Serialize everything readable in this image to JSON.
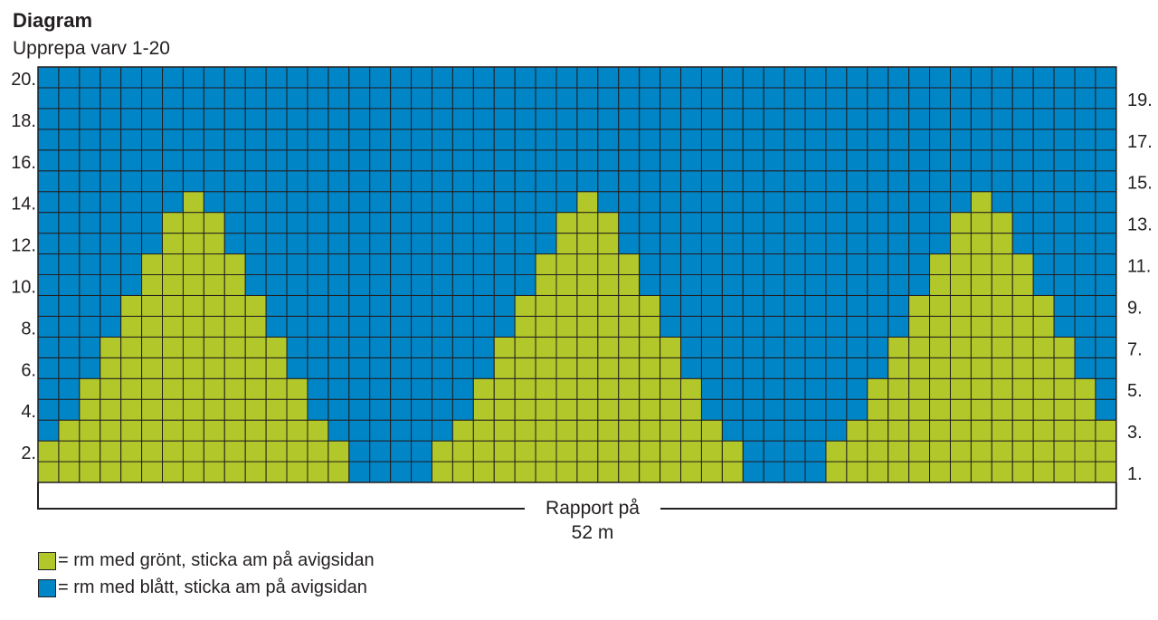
{
  "title": "Diagram",
  "subtitle": "Upprepa varv 1-20",
  "colors": {
    "green": "#b2c82a",
    "blue": "#0085c7",
    "grid_line": "#231f20"
  },
  "grid": {
    "columns": 52,
    "rows": 20,
    "green_row_widths": [
      15,
      15,
      13,
      11,
      11,
      9,
      9,
      7,
      7,
      5,
      5,
      3,
      3,
      1,
      0,
      0,
      0,
      0,
      0,
      0
    ],
    "motif_centers": [
      7,
      26,
      45
    ]
  },
  "row_labels": {
    "left": [
      "2.",
      "4.",
      "6.",
      "8.",
      "10.",
      "12.",
      "14.",
      "16.",
      "18.",
      "20."
    ],
    "right": [
      "1.",
      "3.",
      "5.",
      "7.",
      "9.",
      "11.",
      "13.",
      "15.",
      "17.",
      "19."
    ]
  },
  "rapport": {
    "line1": "Rapport på",
    "line2": "52 m"
  },
  "legend": [
    {
      "color": "green",
      "text": "= rm med grönt, sticka am på avigsidan"
    },
    {
      "color": "blue",
      "text": "= rm med blått, sticka am på avigsidan"
    }
  ]
}
